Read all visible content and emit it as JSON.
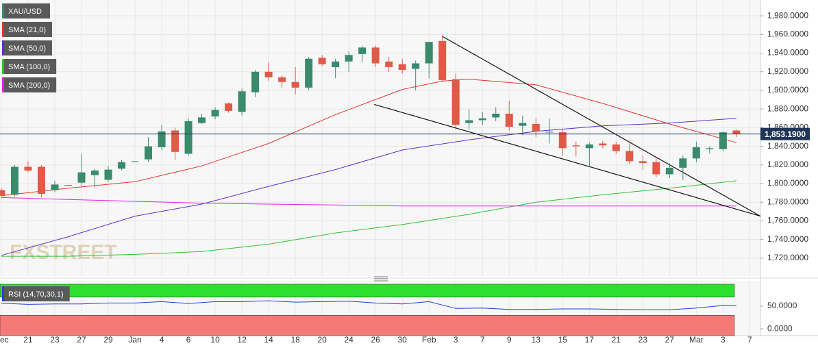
{
  "chart_data": [
    {
      "type": "candlestick",
      "name": "XAU/USD",
      "up_color": "#3a8a6c",
      "down_color": "#e05a48",
      "open": [
        1793,
        1788,
        1818,
        1818,
        1793,
        1798,
        1801,
        1809,
        1804,
        1816,
        1824,
        1826,
        1839,
        1857,
        1832,
        1865,
        1872,
        1886,
        1877,
        1898,
        1920,
        1914,
        1909,
        1903,
        1935,
        1925,
        1931,
        1939,
        1946,
        1931,
        1928,
        1923,
        1929,
        1953,
        1912,
        1865,
        1868,
        1871,
        1875,
        1862,
        1864,
        1855,
        1855,
        1841,
        1838,
        1843,
        1842,
        1835,
        1824,
        1823,
        1810,
        1817,
        1827,
        1837,
        1837,
        1857
      ],
      "high": [
        1795,
        1820,
        1824,
        1820,
        1803,
        1798.5,
        1832,
        1816,
        1819,
        1825,
        1824,
        1850,
        1863,
        1860,
        1870,
        1875,
        1882,
        1887,
        1902,
        1922,
        1930,
        1916,
        1925,
        1936,
        1938,
        1934,
        1942,
        1948,
        1948,
        1936,
        1934,
        1932,
        1952,
        1960,
        1918,
        1880,
        1877,
        1882,
        1889,
        1873,
        1870,
        1870,
        1859,
        1845,
        1844,
        1846,
        1845,
        1846,
        1830,
        1828,
        1822,
        1830,
        1845,
        1840,
        1856,
        1858
      ],
      "low": [
        1785,
        1786,
        1812,
        1785,
        1791,
        1798,
        1798,
        1796,
        1802,
        1814,
        1824,
        1823,
        1836,
        1825,
        1830,
        1864,
        1869,
        1876,
        1873,
        1893,
        1910,
        1903,
        1896,
        1900,
        1926,
        1913,
        1920,
        1930,
        1925,
        1920,
        1918,
        1900,
        1913,
        1909,
        1858,
        1858,
        1863,
        1867,
        1857,
        1852,
        1850,
        1843,
        1830,
        1829,
        1818,
        1838,
        1832,
        1821,
        1815,
        1807,
        1806,
        1804,
        1823,
        1832,
        1835,
        1850
      ],
      "close": [
        1787,
        1818,
        1814,
        1789,
        1799,
        1798.5,
        1812,
        1814,
        1815,
        1823,
        1824,
        1840,
        1856,
        1834,
        1867,
        1871,
        1879,
        1878,
        1899,
        1920,
        1914,
        1909,
        1903,
        1934,
        1928,
        1931,
        1938,
        1946,
        1929,
        1925,
        1922,
        1929,
        1952,
        1911,
        1863,
        1868,
        1870,
        1875,
        1861,
        1865,
        1856,
        1855.5,
        1838,
        1840,
        1842,
        1841,
        1835,
        1824,
        1822,
        1810,
        1817,
        1827,
        1839,
        1838,
        1855,
        1853.19
      ],
      "xlim": [
        -0.1,
        56.8
      ],
      "xticks": [
        {
          "value": 0,
          "label": "Dec"
        },
        {
          "value": 2,
          "label": "21"
        },
        {
          "value": 4,
          "label": "23"
        },
        {
          "value": 6,
          "label": "27"
        },
        {
          "value": 8,
          "label": "29"
        },
        {
          "value": 10,
          "label": "Jan"
        },
        {
          "value": 12,
          "label": "4"
        },
        {
          "value": 14,
          "label": "6"
        },
        {
          "value": 16,
          "label": "10"
        },
        {
          "value": 18,
          "label": "12"
        },
        {
          "value": 20,
          "label": "14"
        },
        {
          "value": 22,
          "label": "18"
        },
        {
          "value": 24,
          "label": "20"
        },
        {
          "value": 26,
          "label": "24"
        },
        {
          "value": 28,
          "label": "26"
        },
        {
          "value": 30,
          "label": "30"
        },
        {
          "value": 32,
          "label": "Feb"
        },
        {
          "value": 34,
          "label": "3"
        },
        {
          "value": 36,
          "label": "7"
        },
        {
          "value": 38,
          "label": "9"
        },
        {
          "value": 40,
          "label": "13"
        },
        {
          "value": 42,
          "label": "15"
        },
        {
          "value": 44,
          "label": "17"
        },
        {
          "value": 46,
          "label": "21"
        },
        {
          "value": 48,
          "label": "23"
        },
        {
          "value": 50,
          "label": "27"
        },
        {
          "value": 52,
          "label": "Mar"
        },
        {
          "value": 54,
          "label": "3"
        },
        {
          "value": 56,
          "label": "7"
        }
      ],
      "ylim": [
        1703,
        1997
      ],
      "yticks": [
        {
          "value": 1720,
          "label": "1,720.0000"
        },
        {
          "value": 1740,
          "label": "1,740.0000"
        },
        {
          "value": 1760,
          "label": "1,760.0000"
        },
        {
          "value": 1780,
          "label": "1,780.0000"
        },
        {
          "value": 1800,
          "label": "1,800.0000"
        },
        {
          "value": 1820,
          "label": "1,820.0000"
        },
        {
          "value": 1840,
          "label": "1,840.0000"
        },
        {
          "value": 1860,
          "label": "1,860.0000"
        },
        {
          "value": 1880,
          "label": "1,880.0000"
        },
        {
          "value": 1900,
          "label": "1,900.0000"
        },
        {
          "value": 1920,
          "label": "1,920.0000"
        },
        {
          "value": 1940,
          "label": "1,940.0000"
        },
        {
          "value": 1960,
          "label": "1,960.0000"
        },
        {
          "value": 1980,
          "label": "1,980.0000"
        }
      ],
      "grid": true,
      "current_price": {
        "value": 1853.19,
        "label": "1,853.1900",
        "color": "#1e3557"
      },
      "overlays": [
        {
          "name": "SMA (21,0)",
          "color": "#e0332a",
          "x": [
            0,
            5,
            10,
            15,
            20,
            25,
            30,
            33,
            35,
            40,
            45,
            50,
            55
          ],
          "values": [
            1787,
            1795,
            1802,
            1819,
            1843,
            1874,
            1901,
            1910,
            1912,
            1906,
            1886,
            1864,
            1844
          ]
        },
        {
          "name": "SMA (50,0)",
          "color": "#5b2fc9",
          "x": [
            0,
            5,
            10,
            15,
            20,
            25,
            30,
            35,
            40,
            45,
            50,
            55
          ],
          "values": [
            1723,
            1743,
            1765,
            1778,
            1797,
            1815,
            1836,
            1847,
            1856,
            1862,
            1865,
            1870
          ]
        },
        {
          "name": "SMA (100,0)",
          "color": "#2ec22e",
          "x": [
            0,
            5,
            10,
            15,
            20,
            25,
            30,
            35,
            40,
            45,
            50,
            55
          ],
          "values": [
            1722,
            1722,
            1724,
            1727,
            1735,
            1747,
            1756,
            1767,
            1780,
            1788,
            1795,
            1803
          ]
        },
        {
          "name": "SMA (200,0)",
          "color": "#e020e0",
          "x": [
            0,
            5,
            10,
            15,
            20,
            25,
            30,
            35,
            40,
            45,
            50,
            55
          ],
          "values": [
            1785,
            1783,
            1781,
            1779,
            1778,
            1777,
            1776,
            1776,
            1776,
            1776,
            1776,
            1776
          ]
        }
      ],
      "trendlines": [
        {
          "x": [
            33,
            56.8
          ],
          "values": [
            1958,
            1765
          ]
        },
        {
          "x": [
            27.9,
            56.8
          ],
          "values": [
            1885,
            1765
          ]
        }
      ],
      "watermark": "FXSTREET"
    },
    {
      "type": "line",
      "name": "RSI (14,70,30,1)",
      "color": "#1f3fd6",
      "x": [
        0,
        2,
        4,
        6,
        8,
        10,
        12,
        14,
        16,
        18,
        20,
        22,
        24,
        26,
        28,
        30,
        32,
        34,
        36,
        38,
        40,
        42,
        44,
        46,
        48,
        50,
        52,
        54,
        55
      ],
      "values": [
        56.5,
        54,
        55,
        55,
        57,
        57,
        60,
        56,
        60,
        60,
        62,
        59,
        60,
        61,
        57,
        55,
        60,
        45,
        46,
        43,
        43,
        44,
        44,
        43,
        42,
        42,
        46,
        51.5,
        51
      ],
      "xlim": [
        -0.1,
        56.8
      ],
      "ylim": [
        -15,
        106
      ],
      "yticks": [
        {
          "value": 0,
          "label": "0.0000"
        },
        {
          "value": 50,
          "label": "50.0000"
        }
      ],
      "overbought": 70,
      "oversold": 30,
      "overbought_color": "#2ee02e",
      "oversold_color": "#f47a78"
    }
  ]
}
